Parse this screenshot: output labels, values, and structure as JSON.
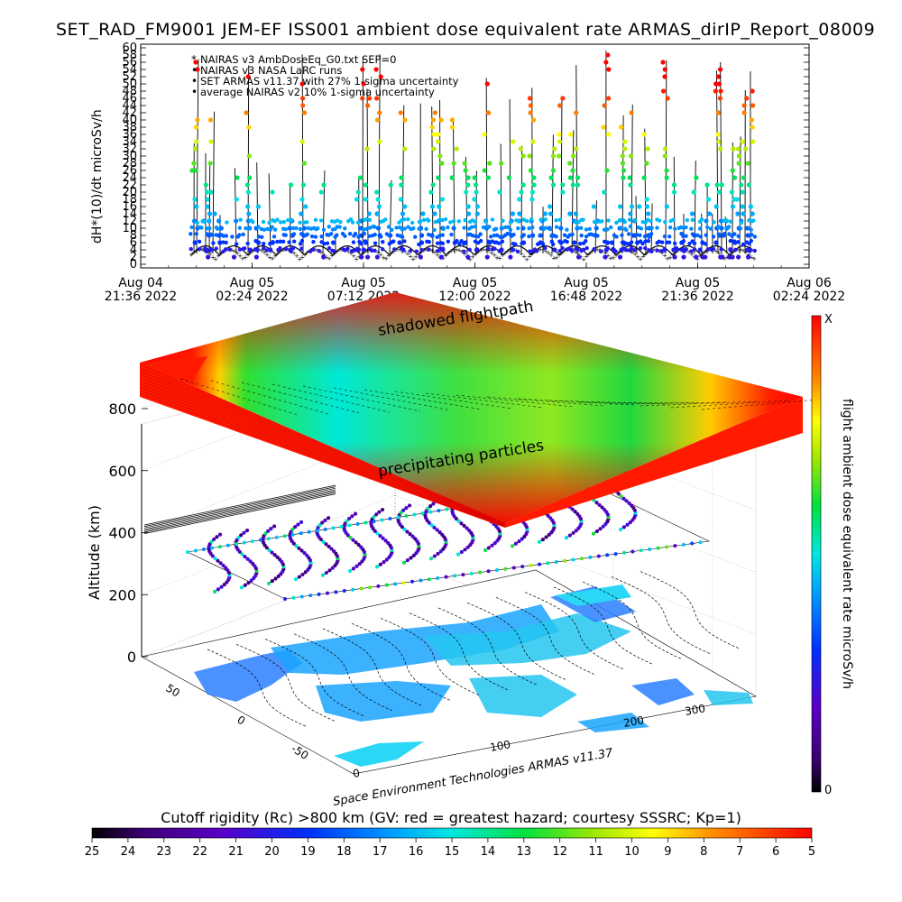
{
  "title": "SET_RAD_FM9001   JEM-EF ISS001 ambient dose equivalent rate ARMAS_dirIP_Report_08009",
  "chart_data": [
    {
      "type": "scatter",
      "ylabel": "dH*(10)/dt microSv/h",
      "ylim": [
        0,
        60
      ],
      "y_ticks": [
        "0",
        "2",
        "4",
        "6",
        "8",
        "10",
        "12",
        "14",
        "16",
        "18",
        "20",
        "22",
        "24",
        "26",
        "28",
        "30",
        "32",
        "34",
        "36",
        "38",
        "40",
        "42",
        "44",
        "46",
        "48",
        "50",
        "52",
        "54",
        "56",
        "58",
        "60"
      ],
      "x_ticks": [
        {
          "line1": "Aug 04",
          "line2": "21:36 2022"
        },
        {
          "line1": "Aug 05",
          "line2": "02:24 2022"
        },
        {
          "line1": "Aug 05",
          "line2": "07:12 2022"
        },
        {
          "line1": "Aug 05",
          "line2": "12:00 2022"
        },
        {
          "line1": "Aug 05",
          "line2": "16:48 2022"
        },
        {
          "line1": "Aug 05",
          "line2": "21:36 2022"
        },
        {
          "line1": "Aug 06",
          "line2": "02:24 2022"
        }
      ],
      "legend": [
        "NAIRAS v3 AmbDoseEq_G0.txt SEP=0",
        "NAIRAS v3 NASA LaRC runs",
        "SET ARMAS v11.37 with 27% 1-sigma uncertainty",
        "average NAIRAS v2 10% 1-sigma uncertainty"
      ],
      "legend_placement": "top-left"
    },
    {
      "type": "heatmap",
      "zlabel": "Altitude (km)",
      "z_ticks": [
        "0",
        "200",
        "400",
        "600",
        "800"
      ],
      "lat_ticks": [
        "50",
        "0",
        "-50"
      ],
      "lon_ticks": [
        "0",
        "100",
        "200",
        "300"
      ],
      "labels": [
        "shadowed flightpath",
        "precipitating particles"
      ],
      "credit": "Space Environment Technologies ARMAS v11.37"
    }
  ],
  "colorbar_right": {
    "label": "flight ambient dose equivalent rate microSv/h",
    "top": "X",
    "bottom": "0"
  },
  "colorbar_bottom": {
    "label": "Cutoff rigidity (Rc) >800 km (GV: red = greatest hazard; courtesy SSSRC; Kp=1)",
    "ticks": [
      "25",
      "24",
      "23",
      "22",
      "21",
      "20",
      "19",
      "18",
      "17",
      "16",
      "15",
      "14",
      "13",
      "12",
      "11",
      "10",
      "9",
      "8",
      "7",
      "6",
      "5"
    ]
  }
}
